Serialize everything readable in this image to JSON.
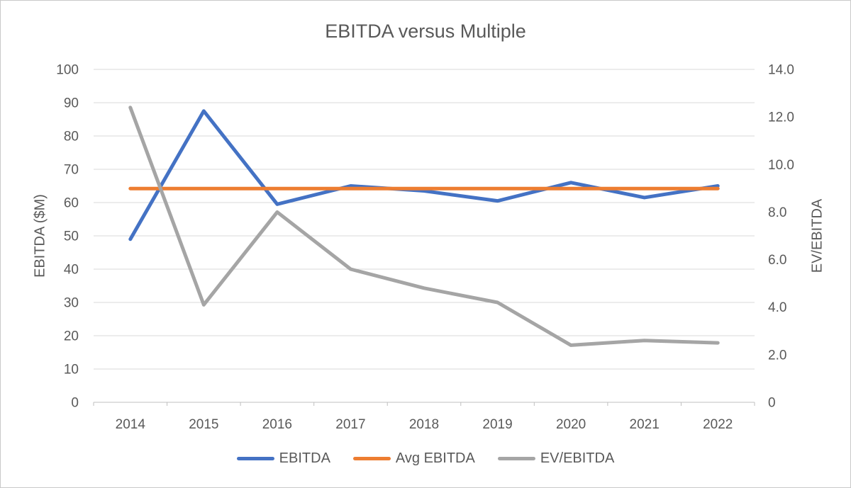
{
  "chart_data": {
    "type": "line",
    "title": "EBITDA versus Multiple",
    "categories": [
      "2014",
      "2015",
      "2016",
      "2017",
      "2018",
      "2019",
      "2020",
      "2021",
      "2022"
    ],
    "series": [
      {
        "name": "EBITDA",
        "axis": "left",
        "color": "#4472C4",
        "values": [
          49,
          87.5,
          59.5,
          65,
          63.5,
          60.5,
          66,
          61.5,
          65
        ]
      },
      {
        "name": "Avg EBITDA",
        "axis": "left",
        "color": "#ED7D31",
        "values": [
          64.2,
          64.2,
          64.2,
          64.2,
          64.2,
          64.2,
          64.2,
          64.2,
          64.2
        ]
      },
      {
        "name": "EV/EBITDA",
        "axis": "right",
        "color": "#A5A5A5",
        "values": [
          12.4,
          4.1,
          8.0,
          5.6,
          4.8,
          4.2,
          2.4,
          2.6,
          2.5
        ]
      }
    ],
    "left_axis": {
      "label": "EBITDA ($M)",
      "min": 0,
      "max": 100,
      "step": 10,
      "tick_labels": [
        "0",
        "10",
        "20",
        "30",
        "40",
        "50",
        "60",
        "70",
        "80",
        "90",
        "100"
      ]
    },
    "right_axis": {
      "label": "EV/EBITDA",
      "min": 0,
      "max": 14,
      "step": 2,
      "tick_labels": [
        "0",
        "2.0",
        "4.0",
        "6.0",
        "8.0",
        "10.0",
        "12.0",
        "14.0"
      ]
    },
    "legend": {
      "position": "bottom",
      "entries": [
        "EBITDA",
        "Avg EBITDA",
        "EV/EBITDA"
      ]
    },
    "grid": "horizontal",
    "colors": {
      "text": "#595959",
      "gridline": "#D9D9D9",
      "axis_line": "#BFBFBF",
      "background": "#FFFFFF",
      "border": "#C9C9C9"
    }
  }
}
